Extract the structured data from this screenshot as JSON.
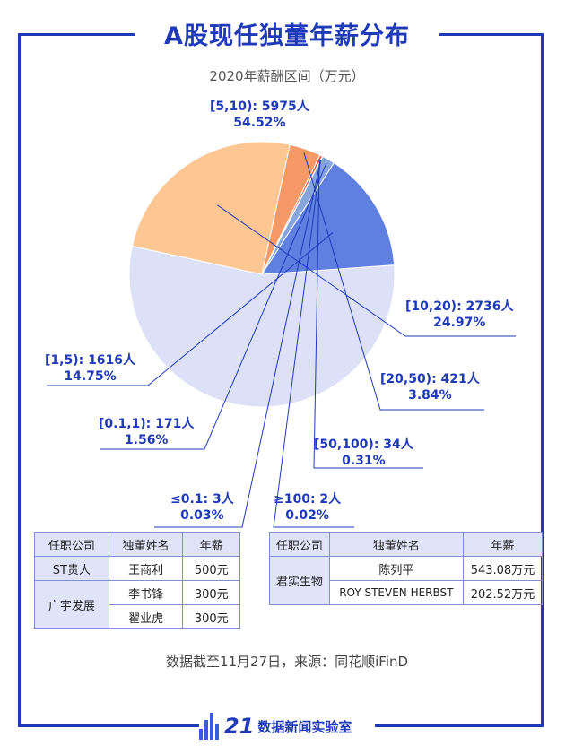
{
  "header": {
    "title": "A股现任独董年薪分布",
    "subtitle": "2020年薪酬区间（万元）"
  },
  "chart_data": {
    "type": "pie",
    "title": "A股现任独董年薪分布",
    "subtitle": "2020年薪酬区间（万元）",
    "slices": [
      {
        "label": "[5,10): 5975人",
        "range": "[5,10)",
        "count": 5975,
        "percent_text": "54.52%",
        "percent": 54.52,
        "color": "#dde1f7"
      },
      {
        "label": "[10,20): 2736人",
        "range": "[10,20)",
        "count": 2736,
        "percent_text": "24.97%",
        "percent": 24.97,
        "color": "#fcc793"
      },
      {
        "label": "[20,50): 421人",
        "range": "[20,50)",
        "count": 421,
        "percent_text": "3.84%",
        "percent": 3.84,
        "color": "#f59a66"
      },
      {
        "label": "[50,100): 34人",
        "range": "[50,100)",
        "count": 34,
        "percent_text": "0.31%",
        "percent": 0.31,
        "color": "#e05a3a"
      },
      {
        "label": "≥100: 2人",
        "range": "≥100",
        "count": 2,
        "percent_text": "0.02%",
        "percent": 0.02,
        "color": "#c03020"
      },
      {
        "label": "≤0.1: 3人",
        "range": "≤0.1",
        "count": 3,
        "percent_text": "0.03%",
        "percent": 0.03,
        "color": "#2a3fa8"
      },
      {
        "label": "[0.1,1): 171人",
        "range": "[0.1,1)",
        "count": 171,
        "percent_text": "1.56%",
        "percent": 1.56,
        "color": "#86a5dc"
      },
      {
        "label": "[1,5): 1616人",
        "range": "[1,5)",
        "count": 1616,
        "percent_text": "14.75%",
        "percent": 14.75,
        "color": "#5f80e0"
      }
    ]
  },
  "tables": {
    "left": {
      "headers": [
        "任职公司",
        "独董姓名",
        "年薪"
      ],
      "rows": [
        {
          "company": "ST贵人",
          "name": "王商利",
          "salary": "500元"
        },
        {
          "company": "广宇发展",
          "name": "李书锋",
          "salary": "300元"
        },
        {
          "company": "",
          "name": "翟业虎",
          "salary": "300元"
        }
      ]
    },
    "right": {
      "headers": [
        "任职公司",
        "独董姓名",
        "年薪"
      ],
      "rows": [
        {
          "company": "君实生物",
          "name": "陈列平",
          "salary": "543.08万元"
        },
        {
          "company": "",
          "name": "ROY STEVEN HERBST",
          "salary": "202.52万元"
        }
      ]
    }
  },
  "footer": {
    "source": "数据截至11月27日，来源：同花顺iFinD"
  },
  "logo": {
    "number": "21",
    "text": "数据新闻实验室"
  },
  "colors": {
    "accent": "#1f3ab8",
    "table_header": "#dfe4f8"
  }
}
